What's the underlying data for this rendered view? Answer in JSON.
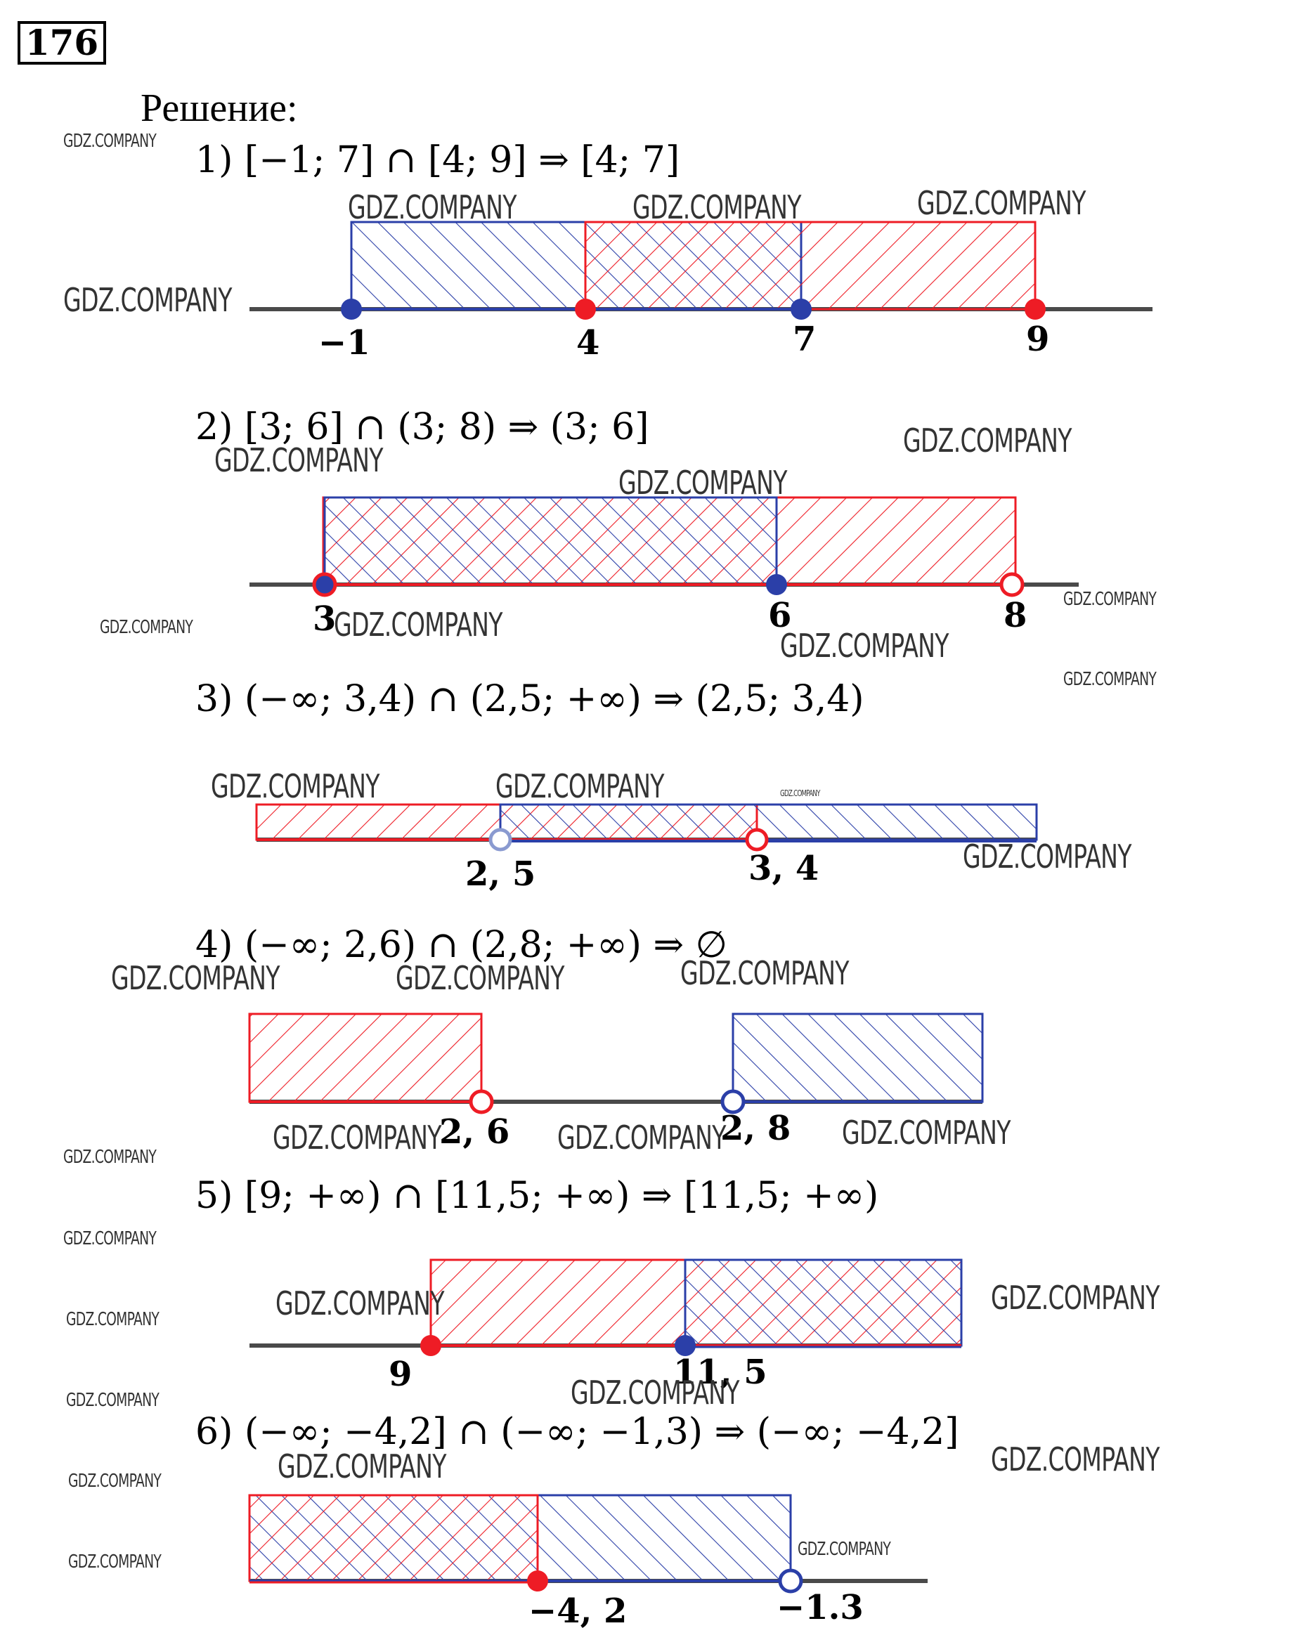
{
  "task_number": "176",
  "heading": "Решение:",
  "colors": {
    "first_set": "#2b3fa8",
    "second_set": "#ee1c25",
    "axis": "#4a4a4a"
  },
  "items": [
    {
      "equation": "1) [−1; 7] ∩ [4; 9] ⇒ [4; 7]",
      "ticks": [
        "−1",
        "4",
        "7",
        "9"
      ]
    },
    {
      "equation": "2) [3; 6] ∩ (3; 8) ⇒ (3; 6]",
      "ticks": [
        "3",
        "6",
        "8"
      ]
    },
    {
      "equation": "3) (−∞; 3,4) ∩ (2,5; +∞) ⇒ (2,5; 3,4)",
      "ticks": [
        "2, 5",
        "3, 4"
      ]
    },
    {
      "equation": "4) (−∞; 2,6) ∩ (2,8; +∞) ⇒ ∅",
      "ticks": [
        "2, 6",
        "2, 8"
      ]
    },
    {
      "equation": "5) [9; +∞) ∩ [11,5; +∞) ⇒ [11,5; +∞)",
      "ticks": [
        "9",
        "11, 5"
      ]
    },
    {
      "equation": "6) (−∞; −4,2] ∩ (−∞; −1,3) ⇒ (−∞; −4,2]",
      "ticks": [
        "−4, 2",
        "−1.3"
      ]
    }
  ],
  "watermark": "GDZ.COMPANY"
}
